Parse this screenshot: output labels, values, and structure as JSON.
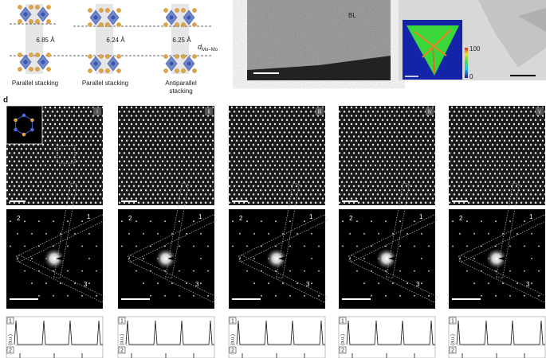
{
  "top": {
    "structures": [
      {
        "distance": "6.85 Å",
        "label": "Parallel stacking"
      },
      {
        "distance": "6.24 Å",
        "label": "Parallel stacking"
      },
      {
        "distance": "6.25 Å",
        "label": "Antiparallel stacking"
      }
    ],
    "distance_symbol": "d",
    "distance_subscript": "Mo–Mo"
  },
  "micrograph": {
    "label": "BL"
  },
  "colorbar": {
    "max": "100",
    "min": "0"
  },
  "panel_d": {
    "label": "d",
    "columns": [
      {
        "label": "i"
      },
      {
        "label": "ii"
      },
      {
        "label": "iii"
      },
      {
        "label": "iv"
      },
      {
        "label": "v"
      }
    ],
    "spot_labels": [
      "1",
      "2",
      "3"
    ],
    "profile_labels": [
      "1",
      "2"
    ],
    "unit": "(a.u.)"
  }
}
